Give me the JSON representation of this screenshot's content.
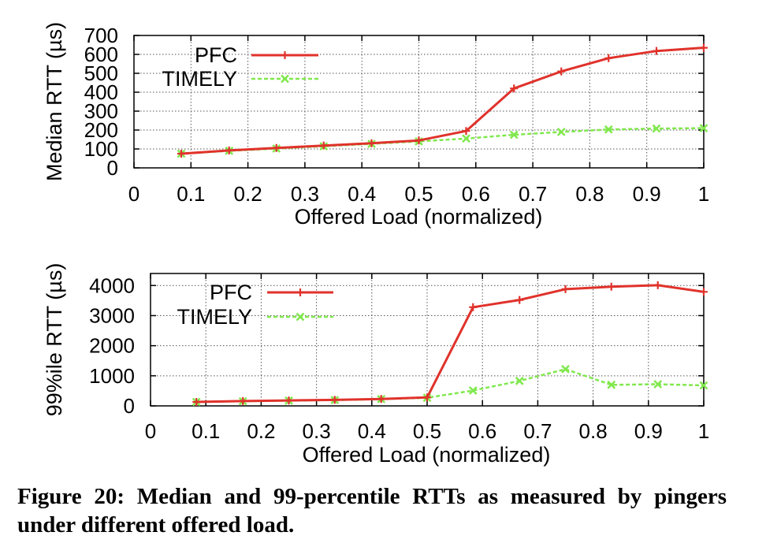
{
  "caption": "Figure 20: Median and 99-percentile RTTs as measured by pingers under different offered load.",
  "colors": {
    "pfc": "#e0322b",
    "timely": "#80e84d",
    "grid": "#555555"
  },
  "chart_data": [
    {
      "type": "line",
      "xlabel": "Offered Load (normalized)",
      "ylabel": "Median RTT (µs)",
      "xlim": [
        0,
        1
      ],
      "ylim": [
        0,
        700
      ],
      "xticks": [
        "0",
        "0.1",
        "0.2",
        "0.3",
        "0.4",
        "0.5",
        "0.6",
        "0.7",
        "0.8",
        "0.9",
        "1"
      ],
      "yticks": [
        "0",
        "100",
        "200",
        "300",
        "400",
        "500",
        "600",
        "700"
      ],
      "grid": true,
      "legend": "top-left",
      "x": [
        0.083,
        0.167,
        0.25,
        0.333,
        0.417,
        0.5,
        0.583,
        0.667,
        0.75,
        0.833,
        0.917,
        1.0
      ],
      "series": [
        {
          "name": "PFC",
          "values": [
            75,
            92,
            105,
            118,
            130,
            145,
            195,
            420,
            510,
            580,
            618,
            635
          ]
        },
        {
          "name": "TIMELY",
          "values": [
            75,
            90,
            102,
            114,
            127,
            140,
            155,
            175,
            190,
            203,
            208,
            210
          ]
        }
      ]
    },
    {
      "type": "line",
      "xlabel": "Offered Load (normalized)",
      "ylabel": "99%ile RTT (µs)",
      "xlim": [
        0,
        1
      ],
      "ylim": [
        0,
        4400
      ],
      "xticks": [
        "0",
        "0.1",
        "0.2",
        "0.3",
        "0.4",
        "0.5",
        "0.6",
        "0.7",
        "0.8",
        "0.9",
        "1"
      ],
      "yticks": [
        "0",
        "1000",
        "2000",
        "3000",
        "4000"
      ],
      "grid": true,
      "legend": "top-left",
      "x": [
        0.083,
        0.167,
        0.25,
        0.333,
        0.417,
        0.5,
        0.583,
        0.667,
        0.75,
        0.833,
        0.917,
        1.0
      ],
      "series": [
        {
          "name": "PFC",
          "values": [
            130,
            160,
            180,
            200,
            230,
            280,
            3280,
            3520,
            3880,
            3960,
            4010,
            3790
          ]
        },
        {
          "name": "TIMELY",
          "values": [
            130,
            155,
            175,
            195,
            225,
            270,
            510,
            830,
            1220,
            700,
            720,
            680
          ]
        }
      ]
    }
  ]
}
